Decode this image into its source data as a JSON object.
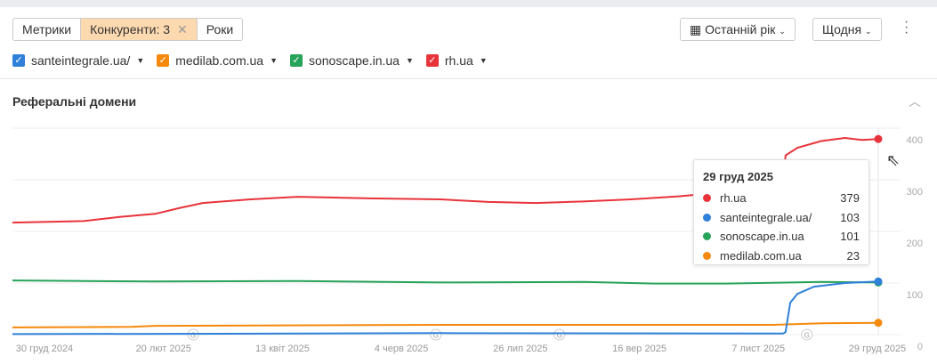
{
  "toolbar": {
    "metrics": "Метрики",
    "competitors": "Конкуренти: 3",
    "years": "Роки",
    "period": "Останній рік",
    "granularity": "Щодня"
  },
  "legend": [
    {
      "label": "santeintegrale.ua/",
      "color": "#2f80d9"
    },
    {
      "label": "medilab.com.ua",
      "color": "#f5890c"
    },
    {
      "label": "sonoscape.in.ua",
      "color": "#27a35a"
    },
    {
      "label": "rh.ua",
      "color": "#e8333a"
    }
  ],
  "section_title": "Реферальні домени",
  "tooltip": {
    "date": "29 груд 2025",
    "rows": [
      {
        "label": "rh.ua",
        "value": "379",
        "color": "#e8333a"
      },
      {
        "label": "santeintegrale.ua/",
        "value": "103",
        "color": "#2f80d9"
      },
      {
        "label": "sonoscape.in.ua",
        "value": "101",
        "color": "#27a35a"
      },
      {
        "label": "medilab.com.ua",
        "value": "23",
        "color": "#f5890c"
      }
    ]
  },
  "chart_data": {
    "type": "line",
    "x_ticks": [
      "30 груд 2024",
      "20 лют 2025",
      "13 квіт 2025",
      "4 черв 2025",
      "26 лип 2025",
      "16 вер 2025",
      "7 лист 2025",
      "29 груд 2025"
    ],
    "y_ticks": [
      "0",
      "100",
      "200",
      "300",
      "400"
    ],
    "ylim": [
      0,
      400
    ],
    "xlim_days": [
      0,
      364
    ],
    "annotations_days": [
      76,
      178,
      230,
      334
    ],
    "annotation_label": "G",
    "series": [
      {
        "name": "rh.ua",
        "color": "#e8333a",
        "points": [
          [
            0,
            217
          ],
          [
            30,
            220
          ],
          [
            45,
            228
          ],
          [
            60,
            234
          ],
          [
            70,
            245
          ],
          [
            80,
            255
          ],
          [
            100,
            262
          ],
          [
            120,
            267
          ],
          [
            150,
            264
          ],
          [
            180,
            262
          ],
          [
            200,
            257
          ],
          [
            220,
            255
          ],
          [
            240,
            258
          ],
          [
            260,
            262
          ],
          [
            280,
            268
          ],
          [
            300,
            276
          ],
          [
            320,
            283
          ],
          [
            324,
            290
          ],
          [
            325,
            347
          ],
          [
            330,
            362
          ],
          [
            340,
            375
          ],
          [
            350,
            381
          ],
          [
            357,
            377
          ],
          [
            364,
            379
          ]
        ]
      },
      {
        "name": "santeintegrale.ua/",
        "color": "#2f80d9",
        "points": [
          [
            0,
            1
          ],
          [
            120,
            2
          ],
          [
            180,
            3
          ],
          [
            324,
            2
          ],
          [
            325,
            5
          ],
          [
            327,
            62
          ],
          [
            330,
            79
          ],
          [
            337,
            93
          ],
          [
            350,
            100
          ],
          [
            364,
            103
          ]
        ]
      },
      {
        "name": "sonoscape.in.ua",
        "color": "#27a35a",
        "points": [
          [
            0,
            105
          ],
          [
            60,
            103
          ],
          [
            120,
            104
          ],
          [
            180,
            101
          ],
          [
            240,
            102
          ],
          [
            270,
            99
          ],
          [
            300,
            99
          ],
          [
            340,
            102
          ],
          [
            364,
            101
          ]
        ]
      },
      {
        "name": "medilab.com.ua",
        "color": "#f5890c",
        "points": [
          [
            0,
            14
          ],
          [
            50,
            15
          ],
          [
            60,
            17
          ],
          [
            180,
            19
          ],
          [
            320,
            19
          ],
          [
            340,
            22
          ],
          [
            364,
            23
          ]
        ]
      }
    ]
  }
}
